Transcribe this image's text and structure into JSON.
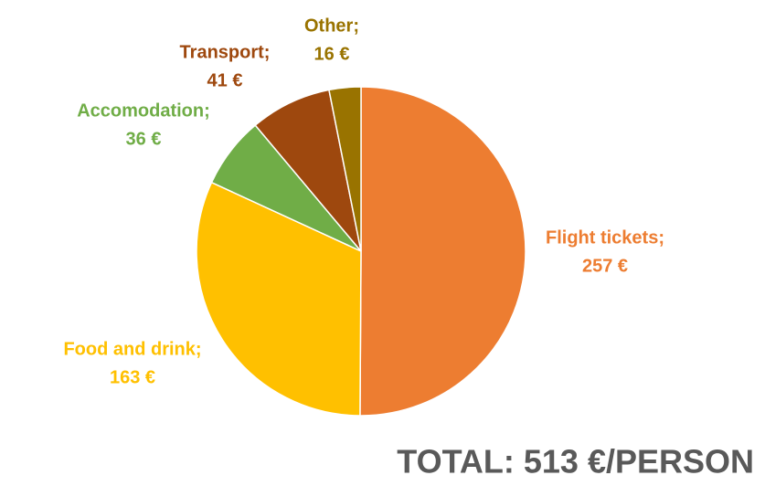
{
  "chart_data": {
    "type": "pie",
    "categories": [
      "Flight tickets;",
      "Food and drink;",
      "Accomodation;",
      "Transport;",
      "Other;"
    ],
    "values": [
      257,
      163,
      36,
      41,
      16
    ],
    "value_labels": [
      "257 €",
      "163 €",
      "36 €",
      "41 €",
      "16 €"
    ],
    "colors": [
      "#ED7D31",
      "#FFC000",
      "#70AD47",
      "#9E480E",
      "#997300"
    ],
    "annotation": "TOTAL: 513 €/PERSON"
  }
}
